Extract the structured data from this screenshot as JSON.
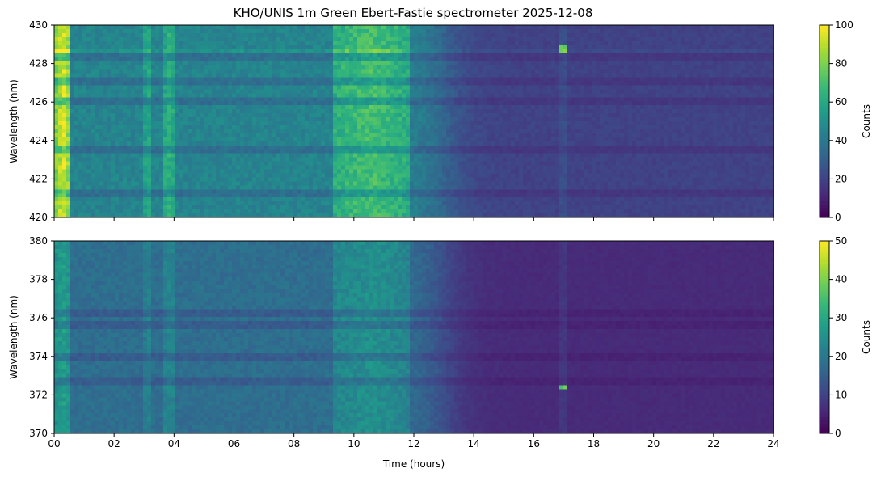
{
  "title": "KHO/UNIS 1m Green Ebert-Fastie spectrometer 2025-12-08",
  "chart_data": [
    {
      "type": "heatmap",
      "panel": "top",
      "x_range": [
        0,
        24
      ],
      "y_range": [
        420,
        430
      ],
      "ylabel": "Wavelength (nm)",
      "yticks": [
        420,
        422,
        424,
        426,
        428,
        430
      ],
      "color_range": [
        0,
        100
      ],
      "colorbar_label": "Counts",
      "colorbar_ticks": [
        0,
        20,
        40,
        60,
        80,
        100
      ],
      "colormap": "viridis",
      "model": {
        "baseline_day": 45,
        "baseline_night": 20,
        "transition_hour": 13,
        "bright_periods": [
          {
            "start": 0.05,
            "end": 0.55,
            "level": 50
          },
          {
            "start": 3.0,
            "end": 3.3,
            "level": 15
          },
          {
            "start": 3.65,
            "end": 4.05,
            "level": 18
          },
          {
            "start": 9.3,
            "end": 11.9,
            "level": 25
          }
        ],
        "dark_lines_nm": [
          423.5,
          426.0,
          427.1,
          428.3,
          421.3
        ],
        "bright_lines_nm": [
          428.7
        ],
        "spike": {
          "hour": 17.0,
          "nm": 428.7,
          "value": 80
        }
      }
    },
    {
      "type": "heatmap",
      "panel": "bottom",
      "x_range": [
        0,
        24
      ],
      "y_range": [
        370,
        380
      ],
      "xlabel": "Time (hours)",
      "ylabel": "Wavelength (nm)",
      "xticks": [
        "00",
        "02",
        "04",
        "06",
        "08",
        "10",
        "12",
        "14",
        "16",
        "18",
        "20",
        "22",
        "24"
      ],
      "yticks": [
        370,
        372,
        374,
        376,
        378,
        380
      ],
      "color_range": [
        0,
        50
      ],
      "colorbar_label": "Counts",
      "colorbar_ticks": [
        0,
        10,
        20,
        30,
        40,
        50
      ],
      "colormap": "viridis",
      "model": {
        "baseline_day": 18,
        "baseline_night": 6,
        "transition_hour": 13,
        "bright_periods": [
          {
            "start": 0.05,
            "end": 0.55,
            "level": 10
          },
          {
            "start": 3.0,
            "end": 3.3,
            "level": 4
          },
          {
            "start": 3.65,
            "end": 4.05,
            "level": 5
          },
          {
            "start": 9.3,
            "end": 11.9,
            "level": 7
          }
        ],
        "dark_lines_nm": [
          372.7,
          374.0,
          375.6,
          376.3
        ],
        "bright_lines_nm": [],
        "spike": {
          "hour": 17.0,
          "nm": 372.4,
          "value": 38
        }
      }
    }
  ]
}
